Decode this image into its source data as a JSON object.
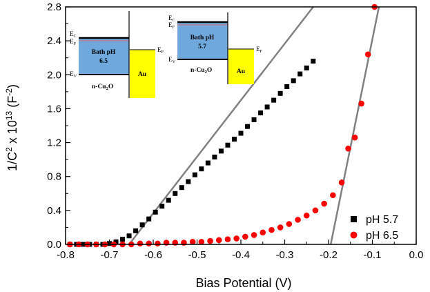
{
  "chart_data": {
    "type": "scatter",
    "title": "",
    "xlabel": "Bias Potential (V)",
    "ylabel_parts": [
      "1/C",
      "2",
      " x 10",
      "13",
      " (F",
      "-2",
      ")"
    ],
    "xlim": [
      -0.8,
      0.0
    ],
    "ylim": [
      0.0,
      2.8
    ],
    "x_ticks": [
      -0.8,
      -0.7,
      -0.6,
      -0.5,
      -0.4,
      -0.3,
      -0.2,
      -0.1,
      0.0
    ],
    "x_tick_labels": [
      "-0.8",
      "-0.7",
      "-0.6",
      "-0.5",
      "-0.4",
      "-0.3",
      "-0.2",
      "-0.1",
      "0.0"
    ],
    "y_ticks": [
      0.0,
      0.4,
      0.8,
      1.2,
      1.6,
      2.0,
      2.4,
      2.8
    ],
    "y_tick_labels": [
      "0.0",
      "0.4",
      "0.8",
      "1.2",
      "1.6",
      "2.0",
      "2.4",
      "2.8"
    ],
    "legend_position": "bottom-right",
    "series": [
      {
        "name": "pH 5.7",
        "marker": "square",
        "color": "#000000",
        "x": [
          -0.79,
          -0.775,
          -0.76,
          -0.745,
          -0.73,
          -0.715,
          -0.7,
          -0.685,
          -0.67,
          -0.655,
          -0.64,
          -0.625,
          -0.61,
          -0.595,
          -0.58,
          -0.565,
          -0.55,
          -0.535,
          -0.52,
          -0.505,
          -0.49,
          -0.475,
          -0.46,
          -0.445,
          -0.43,
          -0.415,
          -0.4,
          -0.385,
          -0.37,
          -0.355,
          -0.34,
          -0.325,
          -0.31,
          -0.295,
          -0.28,
          -0.265,
          -0.25,
          -0.235
        ],
        "y": [
          0.0,
          0.0,
          0.0,
          0.0,
          0.0,
          0.0,
          0.01,
          0.03,
          0.06,
          0.1,
          0.16,
          0.23,
          0.3,
          0.38,
          0.45,
          0.52,
          0.6,
          0.67,
          0.74,
          0.82,
          0.89,
          0.96,
          1.03,
          1.1,
          1.17,
          1.24,
          1.31,
          1.39,
          1.47,
          1.55,
          1.62,
          1.7,
          1.78,
          1.86,
          1.93,
          2.01,
          2.08,
          2.16
        ]
      },
      {
        "name": "pH 6.5",
        "marker": "circle",
        "color": "#ff0000",
        "x": [
          -0.79,
          -0.77,
          -0.75,
          -0.73,
          -0.71,
          -0.69,
          -0.67,
          -0.65,
          -0.63,
          -0.61,
          -0.59,
          -0.57,
          -0.55,
          -0.53,
          -0.51,
          -0.49,
          -0.47,
          -0.45,
          -0.43,
          -0.41,
          -0.39,
          -0.37,
          -0.35,
          -0.33,
          -0.31,
          -0.29,
          -0.27,
          -0.25,
          -0.23,
          -0.21,
          -0.19,
          -0.17,
          -0.155,
          -0.14,
          -0.125,
          -0.11,
          -0.095
        ],
        "y": [
          0.0,
          0.0,
          0.0,
          0.0,
          0.0,
          0.0,
          0.0,
          0.0,
          0.01,
          0.01,
          0.01,
          0.02,
          0.02,
          0.02,
          0.03,
          0.03,
          0.04,
          0.05,
          0.06,
          0.07,
          0.09,
          0.11,
          0.14,
          0.17,
          0.2,
          0.24,
          0.29,
          0.34,
          0.4,
          0.48,
          0.58,
          0.73,
          1.13,
          1.26,
          1.66,
          2.24,
          2.8
        ]
      }
    ],
    "fit_lines": [
      {
        "color": "#808080",
        "x": [
          -0.655,
          -0.235
        ],
        "y": [
          0.0,
          2.8
        ]
      },
      {
        "color": "#808080",
        "x": [
          -0.195,
          -0.085
        ],
        "y": [
          0.0,
          2.8
        ]
      }
    ],
    "insets": [
      {
        "labels": {
          "ec": "E",
          "ec_sub": "C",
          "ef": "E",
          "ef_sub": "F",
          "ev": "E",
          "ev_sub": "V",
          "ef_au": "E",
          "ef_au_sub": "F",
          "bath_line1": "Bath pH",
          "bath_line2": "6.5",
          "au": "Au",
          "cu2o": "n-Cu",
          "cu2o_sub": "2",
          "cu2o_end": "O"
        },
        "colors": {
          "semiconductor": "#6fa8dc",
          "metal": "#ffff00",
          "fermi": "#e06666"
        }
      },
      {
        "labels": {
          "ec": "E",
          "ec_sub": "C",
          "ef": "E",
          "ef_sub": "F",
          "ev": "E",
          "ev_sub": "V",
          "ef_au": "E",
          "ef_au_sub": "F",
          "bath_line1": "Bath pH",
          "bath_line2": "5.7",
          "au": "Au",
          "cu2o": "n-Cu",
          "cu2o_sub": "2",
          "cu2o_end": "O"
        },
        "colors": {
          "semiconductor": "#6fa8dc",
          "metal": "#ffff00",
          "fermi": "#e06666"
        }
      }
    ]
  }
}
